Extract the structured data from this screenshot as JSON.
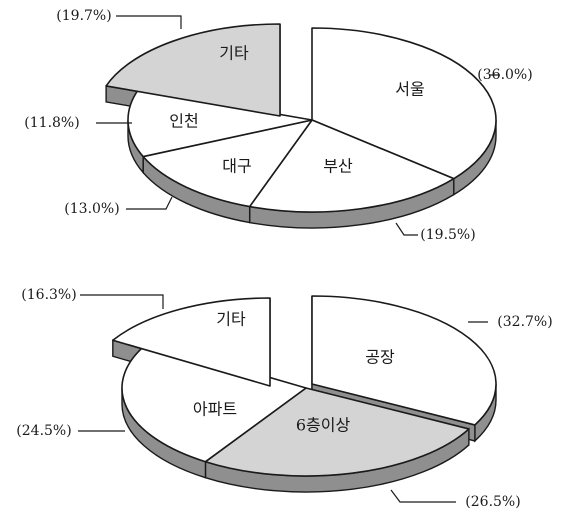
{
  "chart_data": [
    {
      "type": "pie",
      "title": "",
      "categories": [
        "서울",
        "부산",
        "대구",
        "인천",
        "기타"
      ],
      "values": [
        36.0,
        19.5,
        13.0,
        11.8,
        19.7
      ],
      "value_labels": [
        "(36.0%)",
        "(19.5%)",
        "(13.0%)",
        "(11.8%)",
        "(19.7%)"
      ],
      "exploded": [
        "기타"
      ],
      "shaded": [
        "기타"
      ],
      "style": "3d-exploded"
    },
    {
      "type": "pie",
      "title": "",
      "categories": [
        "공장",
        "6층이상",
        "아파트",
        "기타"
      ],
      "values": [
        32.7,
        26.5,
        24.5,
        16.3
      ],
      "value_labels": [
        "(32.7%)",
        "(26.5%)",
        "(24.5%)",
        "(16.3%)"
      ],
      "exploded": [
        "공장",
        "기타"
      ],
      "shaded": [
        "6층이상"
      ],
      "style": "3d-exploded"
    }
  ],
  "colors": {
    "slice_fill": "#ffffff",
    "shaded_fill": "#d4d4d4",
    "side_fill": "#8f8f8f",
    "outline": "#1a1a1a"
  }
}
